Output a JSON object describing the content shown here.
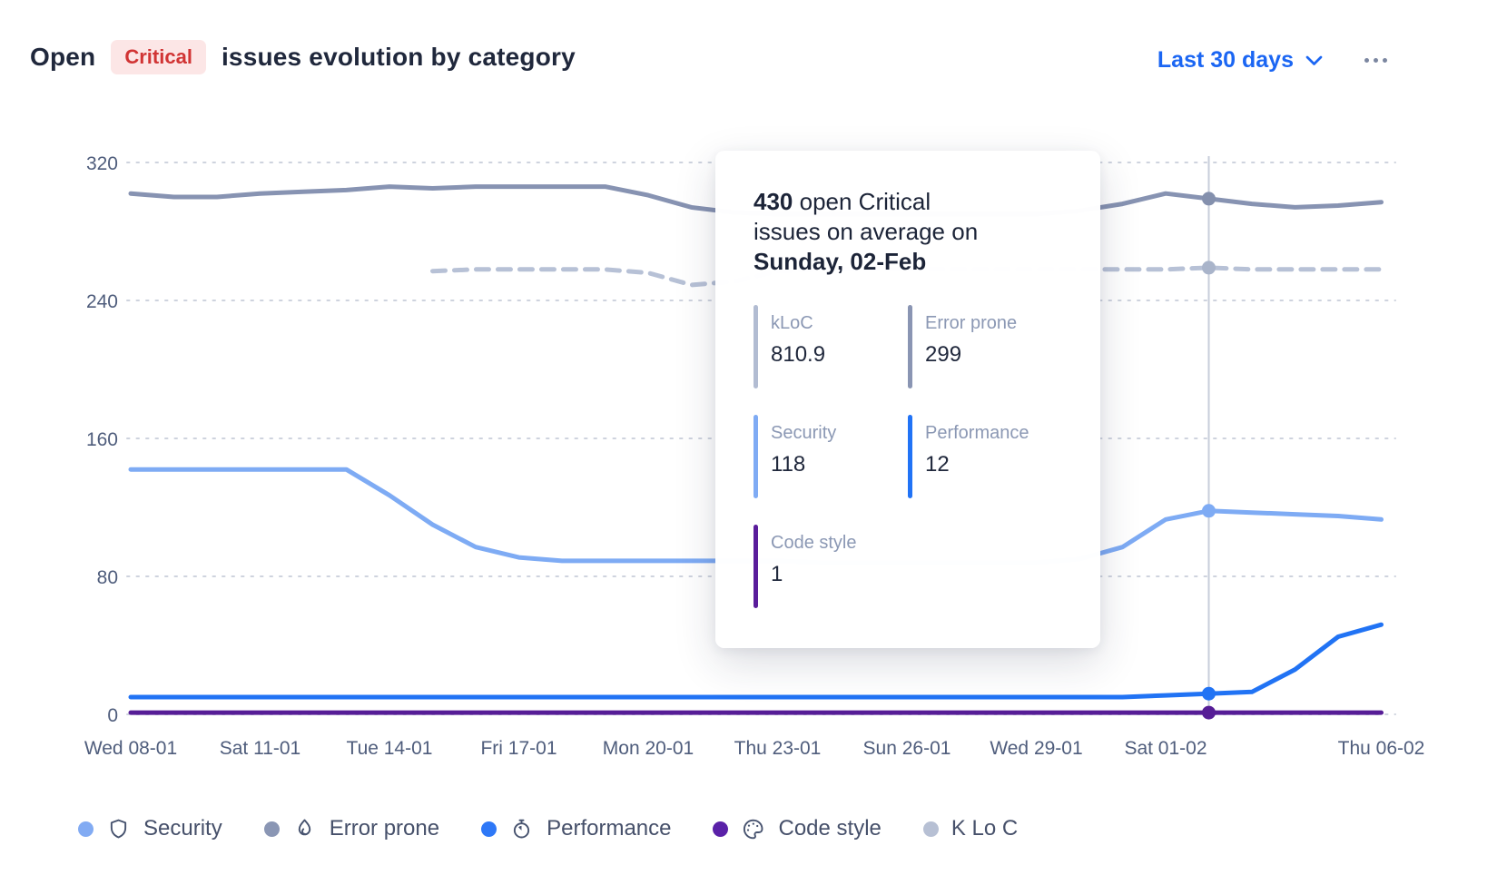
{
  "header": {
    "title_open": "Open",
    "badge": "Critical",
    "title_rest": "issues evolution by category",
    "range_label": "Last 30 days"
  },
  "chart_data": {
    "type": "line",
    "title": "Open Critical issues evolution by category",
    "x_unit": "day (Wed 08-01 = day 0 .. Thu 06-02 = day 29)",
    "x_tick_labels": [
      {
        "day": 0,
        "label": "Wed 08-01"
      },
      {
        "day": 3,
        "label": "Sat 11-01"
      },
      {
        "day": 6,
        "label": "Tue 14-01"
      },
      {
        "day": 9,
        "label": "Fri 17-01"
      },
      {
        "day": 12,
        "label": "Mon 20-01"
      },
      {
        "day": 15,
        "label": "Thu 23-01"
      },
      {
        "day": 18,
        "label": "Sun 26-01"
      },
      {
        "day": 21,
        "label": "Wed 29-01"
      },
      {
        "day": 24,
        "label": "Sat 01-02"
      },
      {
        "day": 29,
        "label": "Thu 06-02"
      }
    ],
    "y_ticks": [
      0,
      80,
      160,
      240,
      320
    ],
    "ylim": [
      0,
      340
    ],
    "grid": "dotted-horizontal",
    "legend_position": "bottom",
    "cursor": {
      "day": 25,
      "date_label": "Sunday, 02-Feb",
      "total_open_critical": 430
    },
    "series": [
      {
        "name": "K Lo C",
        "style": "dashed",
        "axis": "secondary",
        "color": "#b7c1d6",
        "dot_color": "#a9b4ca",
        "cursor_value": 810.9,
        "values": [
          null,
          null,
          null,
          null,
          null,
          null,
          null,
          257,
          258,
          258,
          258,
          258,
          256,
          249,
          251,
          257,
          258,
          258,
          258,
          258,
          258,
          258,
          258,
          258,
          258,
          259,
          258,
          258,
          258,
          258
        ]
      },
      {
        "name": "Error prone",
        "style": "solid",
        "color": "#8793b2",
        "dot_color": "#8490ad",
        "cursor_value": 299,
        "values": [
          302,
          300,
          300,
          302,
          303,
          304,
          306,
          305,
          306,
          306,
          306,
          306,
          301,
          294,
          291,
          290,
          290,
          290,
          290,
          290,
          290,
          290,
          292,
          296,
          302,
          299,
          296,
          294,
          295,
          297
        ]
      },
      {
        "name": "Security",
        "style": "solid",
        "color": "#7eabf4",
        "dot_color": "#7eabf4",
        "cursor_value": 118,
        "values": [
          142,
          142,
          142,
          142,
          142,
          142,
          127,
          110,
          97,
          91,
          89,
          89,
          89,
          89,
          89,
          89,
          88,
          88,
          88,
          88,
          88,
          88,
          90,
          97,
          113,
          118,
          117,
          116,
          115,
          113
        ]
      },
      {
        "name": "Performance",
        "style": "solid",
        "color": "#2173f4",
        "dot_color": "#2173f4",
        "cursor_value": 12,
        "values": [
          10,
          10,
          10,
          10,
          10,
          10,
          10,
          10,
          10,
          10,
          10,
          10,
          10,
          10,
          10,
          10,
          10,
          10,
          10,
          10,
          10,
          10,
          10,
          10,
          11,
          12,
          13,
          26,
          45,
          52
        ]
      },
      {
        "name": "Code style",
        "style": "solid",
        "color": "#561d96",
        "dot_color": "#561d96",
        "cursor_value": 1,
        "values": [
          1,
          1,
          1,
          1,
          1,
          1,
          1,
          1,
          1,
          1,
          1,
          1,
          1,
          1,
          1,
          1,
          1,
          1,
          1,
          1,
          1,
          1,
          1,
          1,
          1,
          1,
          1,
          1,
          1,
          1
        ]
      }
    ]
  },
  "tooltip": {
    "total": "430",
    "line1_rest": " open Critical",
    "line2": "issues on average on",
    "date": "Sunday, 02-Feb",
    "stats": [
      {
        "label": "kLoC",
        "value": "810.9",
        "bar_color": "#b2bcd2"
      },
      {
        "label": "Error prone",
        "value": "299",
        "bar_color": "#8a95b3"
      },
      {
        "label": "Security",
        "value": "118",
        "bar_color": "#7fabf4"
      },
      {
        "label": "Performance",
        "value": "12",
        "bar_color": "#2173f6"
      },
      {
        "label": "Code style",
        "value": "1",
        "bar_color": "#5a1d9b"
      }
    ]
  },
  "legend": {
    "items": [
      {
        "label": "Security",
        "dot": "#82abf3",
        "icon": "shield"
      },
      {
        "label": "Error prone",
        "dot": "#8a96b4",
        "icon": "flame"
      },
      {
        "label": "Performance",
        "dot": "#2e78f7",
        "icon": "stopwatch"
      },
      {
        "label": "Code style",
        "dot": "#5a21a8",
        "icon": "palette"
      },
      {
        "label": "K Lo C",
        "dot": "#b7c0d4",
        "icon": null
      }
    ]
  }
}
